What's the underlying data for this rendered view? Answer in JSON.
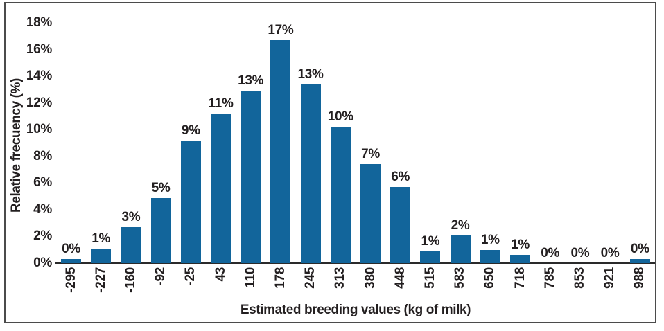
{
  "chart_data": {
    "type": "bar",
    "title": "",
    "xlabel": "Estimated breeding values (kg of milk)",
    "ylabel": "Relative frecuency (%)",
    "categories": [
      "-295",
      "-227",
      "-160",
      "-92",
      "-25",
      "43",
      "110",
      "178",
      "245",
      "313",
      "380",
      "448",
      "515",
      "583",
      "650",
      "718",
      "785",
      "853",
      "921",
      "988"
    ],
    "values": [
      0.3,
      1.1,
      2.7,
      4.9,
      9.2,
      11.2,
      12.9,
      16.7,
      13.4,
      10.2,
      7.4,
      5.7,
      0.9,
      2.1,
      1.0,
      0.6,
      0,
      0,
      0,
      0.3
    ],
    "bar_labels": [
      "0%",
      "1%",
      "3%",
      "5%",
      "9%",
      "11%",
      "13%",
      "17%",
      "13%",
      "10%",
      "7%",
      "6%",
      "1%",
      "2%",
      "1%",
      "1%",
      "0%",
      "0%",
      "0%",
      "0%"
    ],
    "y_tick_labels": [
      "0%",
      "2%",
      "4%",
      "6%",
      "8%",
      "10%",
      "12%",
      "14%",
      "16%",
      "18%"
    ],
    "y_tick_values": [
      0,
      2,
      4,
      6,
      8,
      10,
      12,
      14,
      16,
      18
    ],
    "ylim": [
      0,
      18
    ],
    "grid": false,
    "legend": "none",
    "bar_color": "#12659b",
    "text_color": "#231f20"
  }
}
